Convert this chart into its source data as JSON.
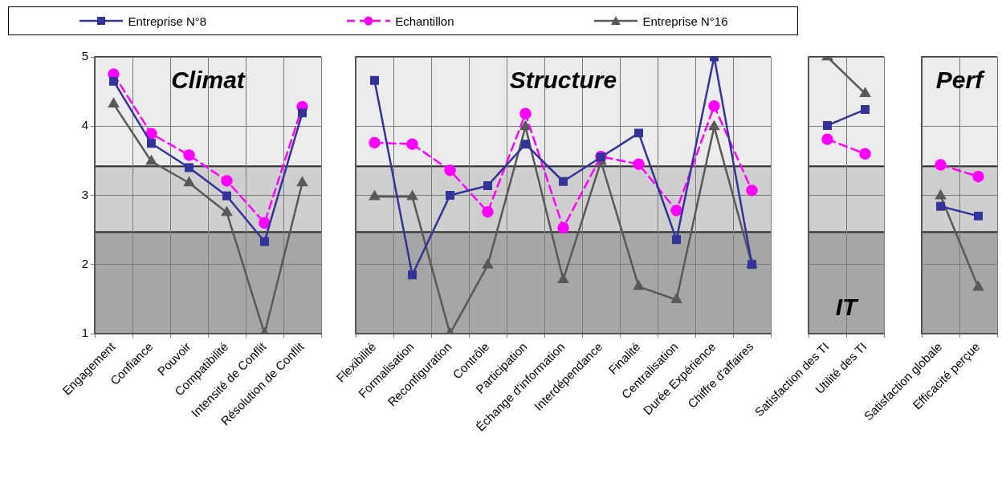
{
  "chart_data": [
    {
      "type": "line",
      "title": "Climat",
      "legend": "top",
      "categories": [
        "Engagement",
        "Confiance",
        "Pouvoir",
        "Compatibilité",
        "Intensité de Conflit",
        "Résolution de Conflit"
      ],
      "ylim": [
        1,
        5
      ],
      "yticks": [
        1,
        2,
        3,
        4,
        5
      ],
      "grid": true,
      "bands": [
        {
          "axis": "y",
          "from": 1,
          "to": 2.47,
          "color": "#a6a6a6"
        },
        {
          "axis": "y",
          "from": 2.47,
          "to": 3.42,
          "color": "#cfcfcf"
        },
        {
          "axis": "y",
          "from": 3.42,
          "to": 5,
          "color": "#ececec"
        }
      ],
      "series": [
        {
          "name": "Entreprise N°8",
          "color": "#333399",
          "marker": "square",
          "line_style": "solid",
          "values": [
            4.65,
            3.75,
            3.4,
            2.99,
            2.33,
            4.19
          ]
        },
        {
          "name": "Echantillon",
          "color": "#ff00ff",
          "marker": "circle",
          "line_style": "dashed",
          "values": [
            4.75,
            3.89,
            3.58,
            3.21,
            2.6,
            4.28
          ]
        },
        {
          "name": "Entreprise N°16",
          "color": "#595959",
          "marker": "triangle",
          "line_style": "solid",
          "values": [
            4.32,
            3.49,
            3.18,
            2.75,
            1.0,
            3.18
          ]
        }
      ]
    },
    {
      "type": "line",
      "title": "Structure",
      "tick_labels": "x",
      "categories": [
        "Flexibilité",
        "Formalisation",
        "Reconfiguration",
        "Contrôle",
        "Participation",
        "Échange d'information",
        "Interdépendance",
        "Finalité",
        "Centralisation",
        "Durée Expérience",
        "Chiffre d'affaires"
      ],
      "ylim": [
        1,
        5
      ],
      "yticks": [
        1,
        2,
        3,
        4,
        5
      ],
      "grid": true,
      "bands": [
        {
          "axis": "y",
          "from": 1,
          "to": 2.47,
          "color": "#a6a6a6"
        },
        {
          "axis": "y",
          "from": 2.47,
          "to": 3.42,
          "color": "#cfcfcf"
        },
        {
          "axis": "y",
          "from": 3.42,
          "to": 5,
          "color": "#ececec"
        }
      ],
      "series": [
        {
          "color": "#333399",
          "marker": "square",
          "line_style": "solid",
          "values": [
            4.66,
            1.85,
            3.0,
            3.14,
            3.74,
            3.2,
            3.55,
            3.9,
            2.36,
            5.0,
            2.0
          ]
        },
        {
          "color": "#ff00ff",
          "marker": "circle",
          "line_style": "dashed",
          "values": [
            3.76,
            3.74,
            3.36,
            2.76,
            4.18,
            2.53,
            3.56,
            3.45,
            2.78,
            4.29,
            3.07
          ]
        },
        {
          "color": "#595959",
          "marker": "triangle",
          "line_style": "solid",
          "values": [
            2.98,
            2.98,
            1.0,
            1.99,
            3.99,
            1.78,
            3.49,
            1.68,
            1.49,
            3.99,
            2.0
          ]
        }
      ]
    },
    {
      "type": "line",
      "title": "IT",
      "tick_labels": "x",
      "categories": [
        "Satisfaction des TI",
        "Utilité des TI"
      ],
      "ylim": [
        1,
        5
      ],
      "yticks": [
        1,
        2,
        3,
        4,
        5
      ],
      "grid": true,
      "bands": [
        {
          "axis": "y",
          "from": 1,
          "to": 2.47,
          "color": "#a6a6a6"
        },
        {
          "axis": "y",
          "from": 2.47,
          "to": 3.42,
          "color": "#cfcfcf"
        },
        {
          "axis": "y",
          "from": 3.42,
          "to": 5,
          "color": "#ececec"
        }
      ],
      "series": [
        {
          "color": "#333399",
          "marker": "square",
          "line_style": "solid",
          "values": [
            4.01,
            4.24
          ]
        },
        {
          "color": "#ff00ff",
          "marker": "circle",
          "line_style": "dashed",
          "values": [
            3.81,
            3.6
          ]
        },
        {
          "color": "#595959",
          "marker": "triangle",
          "line_style": "solid",
          "values": [
            5.0,
            4.47
          ]
        }
      ]
    },
    {
      "type": "line",
      "title": "Perf",
      "tick_labels": "x",
      "categories": [
        "Satisfaction globale",
        "Efficacité perçue"
      ],
      "ylim": [
        1,
        5
      ],
      "yticks": [
        1,
        2,
        3,
        4,
        5
      ],
      "grid": true,
      "bands": [
        {
          "axis": "y",
          "from": 1,
          "to": 2.47,
          "color": "#a6a6a6"
        },
        {
          "axis": "y",
          "from": 2.47,
          "to": 3.42,
          "color": "#cfcfcf"
        },
        {
          "axis": "y",
          "from": 3.42,
          "to": 5,
          "color": "#ececec"
        }
      ],
      "series": [
        {
          "color": "#333399",
          "marker": "square",
          "line_style": "solid",
          "values": [
            2.84,
            2.7
          ]
        },
        {
          "color": "#ff00ff",
          "marker": "circle",
          "line_style": "dashed",
          "values": [
            3.44,
            3.27
          ]
        },
        {
          "color": "#595959",
          "marker": "triangle",
          "line_style": "solid",
          "values": [
            2.99,
            1.67
          ]
        }
      ]
    }
  ]
}
